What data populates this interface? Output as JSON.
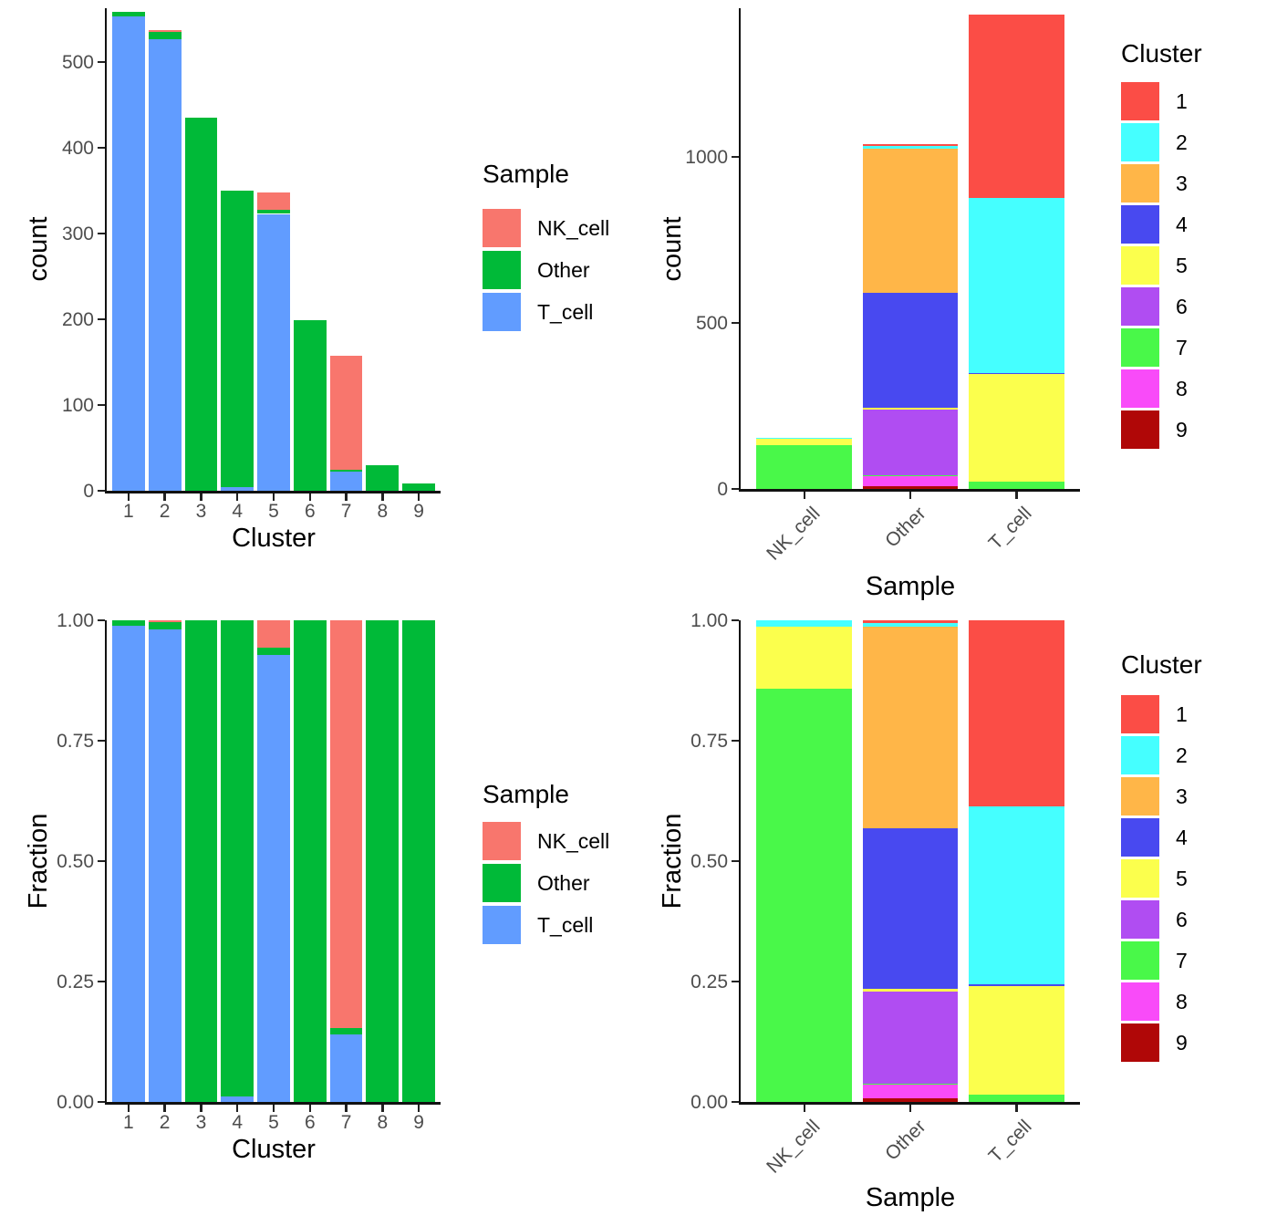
{
  "figure": {
    "background": "#ffffff",
    "sample_colors": {
      "NK_cell": "#F8766D",
      "Other": "#00BA38",
      "T_cell": "#619CFF"
    },
    "cluster_colors": {
      "1": "#FB4D46",
      "2": "#45FFFF",
      "3": "#FFB648",
      "4": "#4849F0",
      "5": "#FBFF4D",
      "6": "#B04DF2",
      "7": "#49F849",
      "8": "#F94BF9",
      "9": "#B00707"
    }
  },
  "chart_data": [
    {
      "id": "counts-by-cluster",
      "type": "bar",
      "stacked": true,
      "normalized": false,
      "title": "",
      "xlabel": "Cluster",
      "ylabel": "count",
      "categories": [
        "1",
        "2",
        "3",
        "4",
        "5",
        "6",
        "7",
        "8",
        "9"
      ],
      "series": [
        {
          "name": "T_cell",
          "color": "#619CFF",
          "values": [
            553,
            527,
            0,
            4,
            323,
            0,
            22,
            0,
            0
          ]
        },
        {
          "name": "Other",
          "color": "#00BA38",
          "values": [
            6,
            8,
            435,
            346,
            5,
            199,
            2,
            30,
            8
          ]
        },
        {
          "name": "NK_cell",
          "color": "#F8766D",
          "values": [
            0,
            2,
            0,
            0,
            20,
            0,
            133,
            0,
            0
          ]
        }
      ],
      "yticks": [
        {
          "v": 0,
          "label": "0"
        },
        {
          "v": 100,
          "label": "100"
        },
        {
          "v": 200,
          "label": "200"
        },
        {
          "v": 300,
          "label": "300"
        },
        {
          "v": 400,
          "label": "400"
        },
        {
          "v": 500,
          "label": "500"
        }
      ],
      "ylim": [
        0,
        563
      ],
      "grid": false,
      "legend": {
        "title": "Sample",
        "position": "right",
        "entries": [
          {
            "label": "NK_cell",
            "color": "#F8766D"
          },
          {
            "label": "Other",
            "color": "#00BA38"
          },
          {
            "label": "T_cell",
            "color": "#619CFF"
          }
        ]
      }
    },
    {
      "id": "counts-by-sample",
      "type": "bar",
      "stacked": true,
      "normalized": false,
      "title": "",
      "xlabel": "Sample",
      "ylabel": "count",
      "categories": [
        "NK_cell",
        "Other",
        "T_cell"
      ],
      "series": [
        {
          "name": "9",
          "color": "#B00707",
          "values": [
            0,
            8,
            0
          ]
        },
        {
          "name": "8",
          "color": "#F94BF9",
          "values": [
            0,
            30,
            0
          ]
        },
        {
          "name": "7",
          "color": "#49F849",
          "values": [
            133,
            2,
            22
          ]
        },
        {
          "name": "6",
          "color": "#B04DF2",
          "values": [
            0,
            199,
            0
          ]
        },
        {
          "name": "5",
          "color": "#FBFF4D",
          "values": [
            20,
            5,
            323
          ]
        },
        {
          "name": "4",
          "color": "#4849F0",
          "values": [
            0,
            346,
            4
          ]
        },
        {
          "name": "3",
          "color": "#FFB648",
          "values": [
            0,
            435,
            0
          ]
        },
        {
          "name": "2",
          "color": "#45FFFF",
          "values": [
            2,
            8,
            527
          ]
        },
        {
          "name": "1",
          "color": "#FB4D46",
          "values": [
            0,
            6,
            553
          ]
        }
      ],
      "yticks": [
        {
          "v": 0,
          "label": "0"
        },
        {
          "v": 500,
          "label": "500"
        },
        {
          "v": 1000,
          "label": "1000"
        }
      ],
      "ylim": [
        0,
        1448
      ],
      "grid": false,
      "rotated_x_labels": true,
      "legend": {
        "title": "Cluster",
        "position": "right",
        "entries": [
          {
            "label": "1",
            "color": "#FB4D46"
          },
          {
            "label": "2",
            "color": "#45FFFF"
          },
          {
            "label": "3",
            "color": "#FFB648"
          },
          {
            "label": "4",
            "color": "#4849F0"
          },
          {
            "label": "5",
            "color": "#FBFF4D"
          },
          {
            "label": "6",
            "color": "#B04DF2"
          },
          {
            "label": "7",
            "color": "#49F849"
          },
          {
            "label": "8",
            "color": "#F94BF9"
          },
          {
            "label": "9",
            "color": "#B00707"
          }
        ]
      }
    },
    {
      "id": "fraction-by-cluster",
      "type": "bar",
      "stacked": true,
      "normalized": true,
      "title": "",
      "xlabel": "Cluster",
      "ylabel": "Fraction",
      "categories": [
        "1",
        "2",
        "3",
        "4",
        "5",
        "6",
        "7",
        "8",
        "9"
      ],
      "series": [
        {
          "name": "T_cell",
          "color": "#619CFF",
          "values": [
            553,
            527,
            0,
            4,
            323,
            0,
            22,
            0,
            0
          ]
        },
        {
          "name": "Other",
          "color": "#00BA38",
          "values": [
            6,
            8,
            435,
            346,
            5,
            199,
            2,
            30,
            8
          ]
        },
        {
          "name": "NK_cell",
          "color": "#F8766D",
          "values": [
            0,
            2,
            0,
            0,
            20,
            0,
            133,
            0,
            0
          ]
        }
      ],
      "yticks": [
        {
          "v": 0,
          "label": "0.00"
        },
        {
          "v": 0.25,
          "label": "0.25"
        },
        {
          "v": 0.5,
          "label": "0.50"
        },
        {
          "v": 0.75,
          "label": "0.75"
        },
        {
          "v": 1,
          "label": "1.00"
        }
      ],
      "ylim": [
        0,
        1
      ],
      "grid": false,
      "legend": {
        "title": "Sample",
        "position": "right",
        "entries": [
          {
            "label": "NK_cell",
            "color": "#F8766D"
          },
          {
            "label": "Other",
            "color": "#00BA38"
          },
          {
            "label": "T_cell",
            "color": "#619CFF"
          }
        ]
      }
    },
    {
      "id": "fraction-by-sample",
      "type": "bar",
      "stacked": true,
      "normalized": true,
      "title": "",
      "xlabel": "Sample",
      "ylabel": "Fraction",
      "categories": [
        "NK_cell",
        "Other",
        "T_cell"
      ],
      "series": [
        {
          "name": "9",
          "color": "#B00707",
          "values": [
            0,
            8,
            0
          ]
        },
        {
          "name": "8",
          "color": "#F94BF9",
          "values": [
            0,
            30,
            0
          ]
        },
        {
          "name": "7",
          "color": "#49F849",
          "values": [
            133,
            2,
            22
          ]
        },
        {
          "name": "6",
          "color": "#B04DF2",
          "values": [
            0,
            199,
            0
          ]
        },
        {
          "name": "5",
          "color": "#FBFF4D",
          "values": [
            20,
            5,
            323
          ]
        },
        {
          "name": "4",
          "color": "#4849F0",
          "values": [
            0,
            346,
            4
          ]
        },
        {
          "name": "3",
          "color": "#FFB648",
          "values": [
            0,
            435,
            0
          ]
        },
        {
          "name": "2",
          "color": "#45FFFF",
          "values": [
            2,
            8,
            527
          ]
        },
        {
          "name": "1",
          "color": "#FB4D46",
          "values": [
            0,
            6,
            553
          ]
        }
      ],
      "yticks": [
        {
          "v": 0,
          "label": "0.00"
        },
        {
          "v": 0.25,
          "label": "0.25"
        },
        {
          "v": 0.5,
          "label": "0.50"
        },
        {
          "v": 0.75,
          "label": "0.75"
        },
        {
          "v": 1,
          "label": "1.00"
        }
      ],
      "ylim": [
        0,
        1
      ],
      "grid": false,
      "rotated_x_labels": true,
      "legend": {
        "title": "Cluster",
        "position": "right",
        "entries": [
          {
            "label": "1",
            "color": "#FB4D46"
          },
          {
            "label": "2",
            "color": "#45FFFF"
          },
          {
            "label": "3",
            "color": "#FFB648"
          },
          {
            "label": "4",
            "color": "#4849F0"
          },
          {
            "label": "5",
            "color": "#FBFF4D"
          },
          {
            "label": "6",
            "color": "#B04DF2"
          },
          {
            "label": "7",
            "color": "#49F849"
          },
          {
            "label": "8",
            "color": "#F94BF9"
          },
          {
            "label": "9",
            "color": "#B00707"
          }
        ]
      }
    }
  ]
}
